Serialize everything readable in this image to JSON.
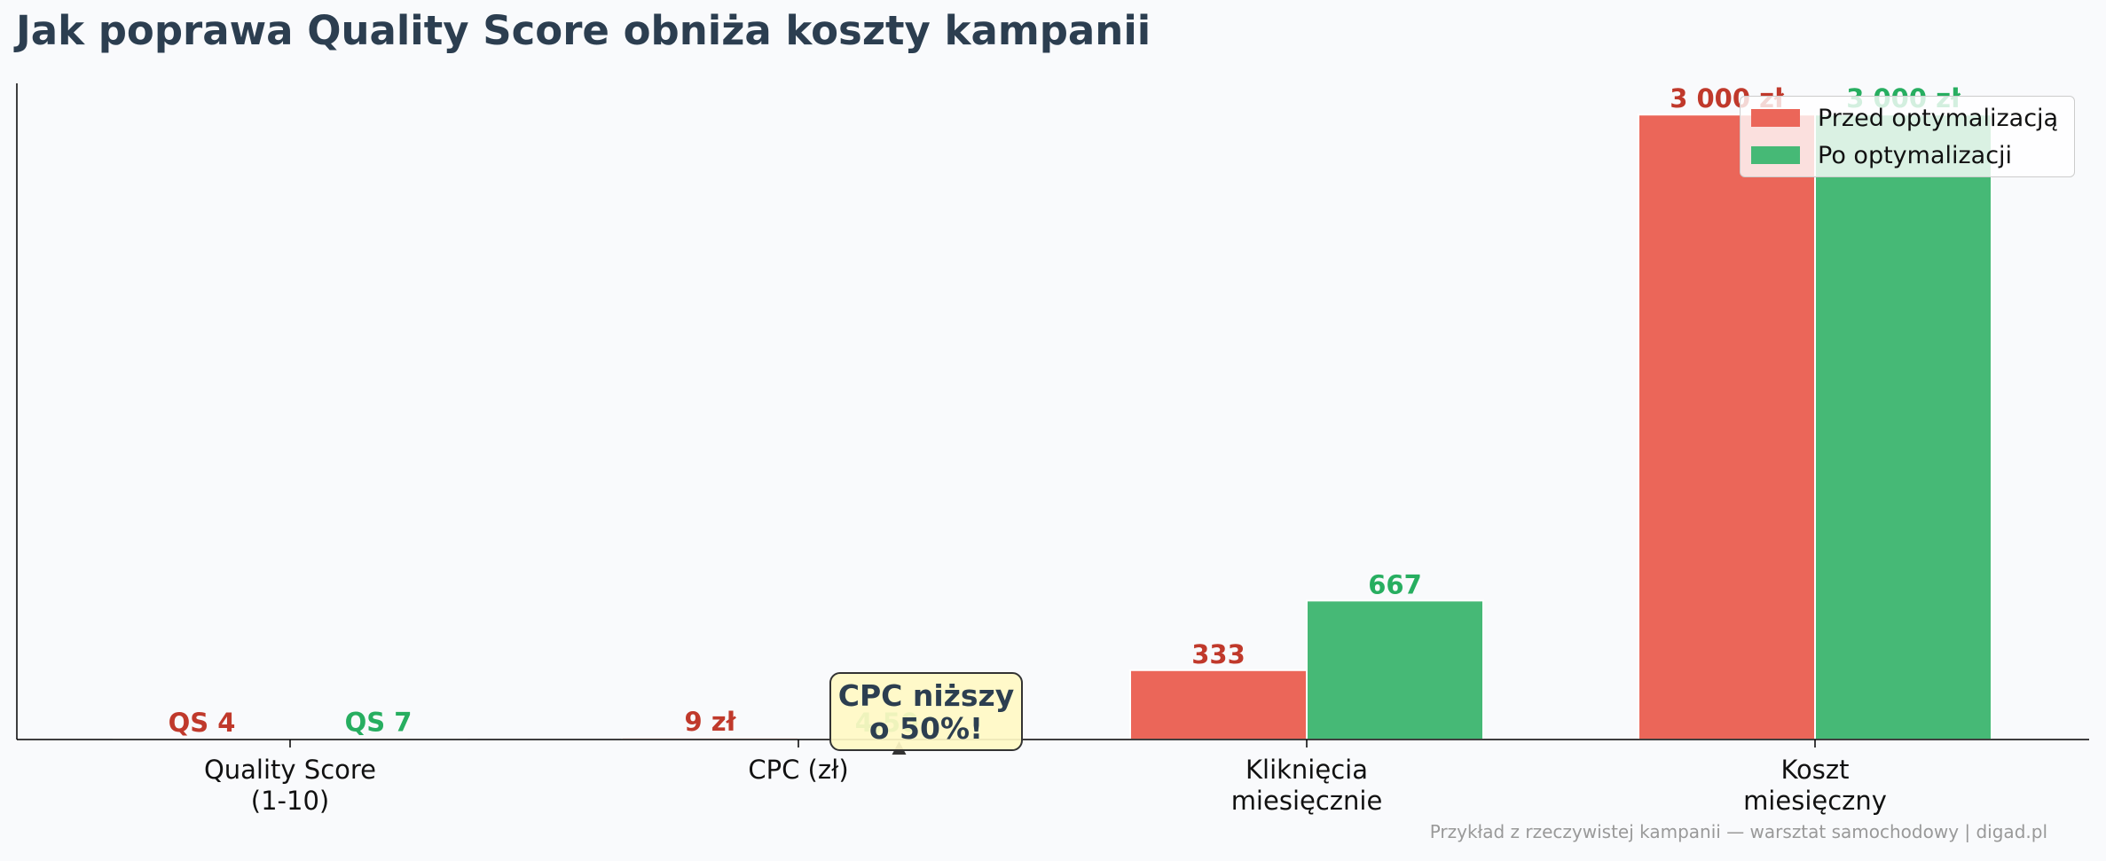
{
  "title": "Jak poprawa Quality Score obniża koszty kampanii",
  "source_note": "Przykład z rzeczywistej kampanii — warsztat samochodowy | digad.pl",
  "colors": {
    "before": "#eb6659",
    "after": "#46b976",
    "before_label": "#c0392b",
    "after_label": "#27ae60"
  },
  "annotation": {
    "text": "CPC niższy o 50%!"
  },
  "chart_data": {
    "type": "bar",
    "categories": [
      [
        "Quality Score",
        "(1-10)"
      ],
      [
        "CPC (zł)"
      ],
      [
        "Kliknięcia",
        "miesięcznie"
      ],
      [
        "Koszt",
        "miesięczny"
      ]
    ],
    "series": [
      {
        "name": "Przed optymalizacją",
        "values": [
          4,
          9,
          333,
          3000
        ],
        "labels": [
          "QS 4",
          "9 zł",
          "333",
          "3 000 zł"
        ]
      },
      {
        "name": "Po optymalizacji",
        "values": [
          7,
          4.5,
          667,
          3000
        ],
        "labels": [
          "QS 7",
          "4,50",
          "667",
          "3 000 zł"
        ]
      }
    ],
    "ylim": [
      0,
      3150
    ],
    "legend": "top-right"
  }
}
